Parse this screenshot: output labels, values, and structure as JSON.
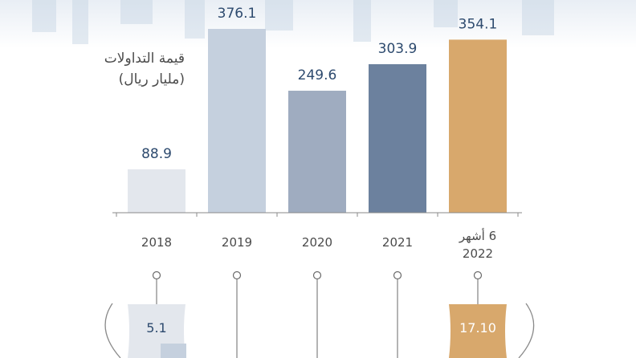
{
  "chart_data": {
    "type": "bar",
    "ylabel": "قيمة التداولات",
    "ylabel_unit": "(مليار ريال)",
    "categories": [
      {
        "label": "2018",
        "label2": ""
      },
      {
        "label": "2019",
        "label2": ""
      },
      {
        "label": "2020",
        "label2": ""
      },
      {
        "label": "2021",
        "label2": ""
      },
      {
        "label": "6 أشهر",
        "label2": "2022"
      }
    ],
    "values": [
      88.9,
      376.1,
      249.6,
      303.9,
      354.1
    ],
    "value_labels": [
      "88.9",
      "376.1",
      "249.6",
      "303.9",
      "354.1"
    ],
    "colors": [
      "#e3e7ed",
      "#c5d0de",
      "#9facc0",
      "#6c819e",
      "#d8a86c"
    ],
    "value_label_color": "#2d4a6e",
    "secondary_values": [
      {
        "category": "2018",
        "value": "5.1",
        "color": "#e3e7ed",
        "text_color": "#2d4a6e"
      },
      {
        "category": "2022",
        "value": "17.10",
        "color": "#d8a86c",
        "text_color": "#ffffff"
      }
    ]
  }
}
